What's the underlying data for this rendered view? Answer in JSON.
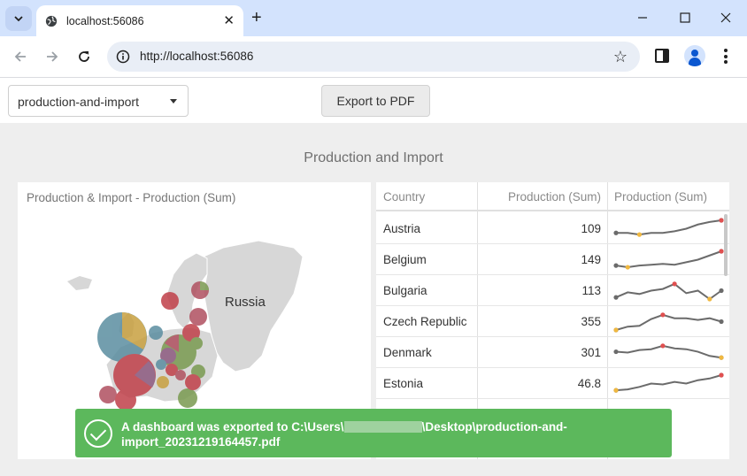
{
  "browser": {
    "tab_title": "localhost:56086",
    "url": "http://localhost:56086",
    "new_tab_label": "+",
    "tab_close_label": "✕"
  },
  "toolbar": {
    "dashboard_select_value": "production-and-import",
    "export_label": "Export to PDF"
  },
  "dashboard": {
    "title": "Production and Import",
    "map": {
      "title": "Production & Import - Production (Sum)",
      "country_label": "Russia"
    },
    "grid": {
      "columns": [
        "Country",
        "Production (Sum)",
        "Production (Sum)"
      ],
      "rows": [
        {
          "country": "Austria",
          "production": "109",
          "spark": [
            3,
            3,
            2.6,
            3,
            3,
            3.4,
            4,
            5,
            5.6,
            6
          ]
        },
        {
          "country": "Belgium",
          "production": "149",
          "spark": [
            2.6,
            2.2,
            2.6,
            2.8,
            3,
            2.8,
            3.4,
            4,
            5,
            6
          ]
        },
        {
          "country": "Bulgaria",
          "production": "113",
          "spark": [
            2.4,
            3.6,
            3.2,
            4,
            4.4,
            5.6,
            3.4,
            4,
            2,
            4
          ]
        },
        {
          "country": "Czech Republic",
          "production": "355",
          "spark": [
            2,
            2.8,
            3,
            4.6,
            5.6,
            4.8,
            4.8,
            4.4,
            4.8,
            4
          ]
        },
        {
          "country": "Denmark",
          "production": "301",
          "spark": [
            4.2,
            4,
            4.6,
            4.8,
            5.6,
            5,
            4.8,
            4.2,
            3.2,
            2.8
          ]
        },
        {
          "country": "Estonia",
          "production": "46.8",
          "spark": [
            2.4,
            2.6,
            3.2,
            4,
            3.8,
            4.4,
            4,
            4.8,
            5.2,
            6
          ]
        }
      ]
    }
  },
  "notification": {
    "line1_prefix": "A dashboard was exported to C:\\Users\\",
    "line1_suffix": "\\Desktop\\production-and-",
    "line2": "import_20231219164457.pdf"
  },
  "colors": {
    "accent_tab_strip": "#d3e3fd",
    "success": "#5cb85c",
    "spark_line": "#6b6b6b",
    "spark_max": "#e05050",
    "spark_min": "#f0b840"
  }
}
